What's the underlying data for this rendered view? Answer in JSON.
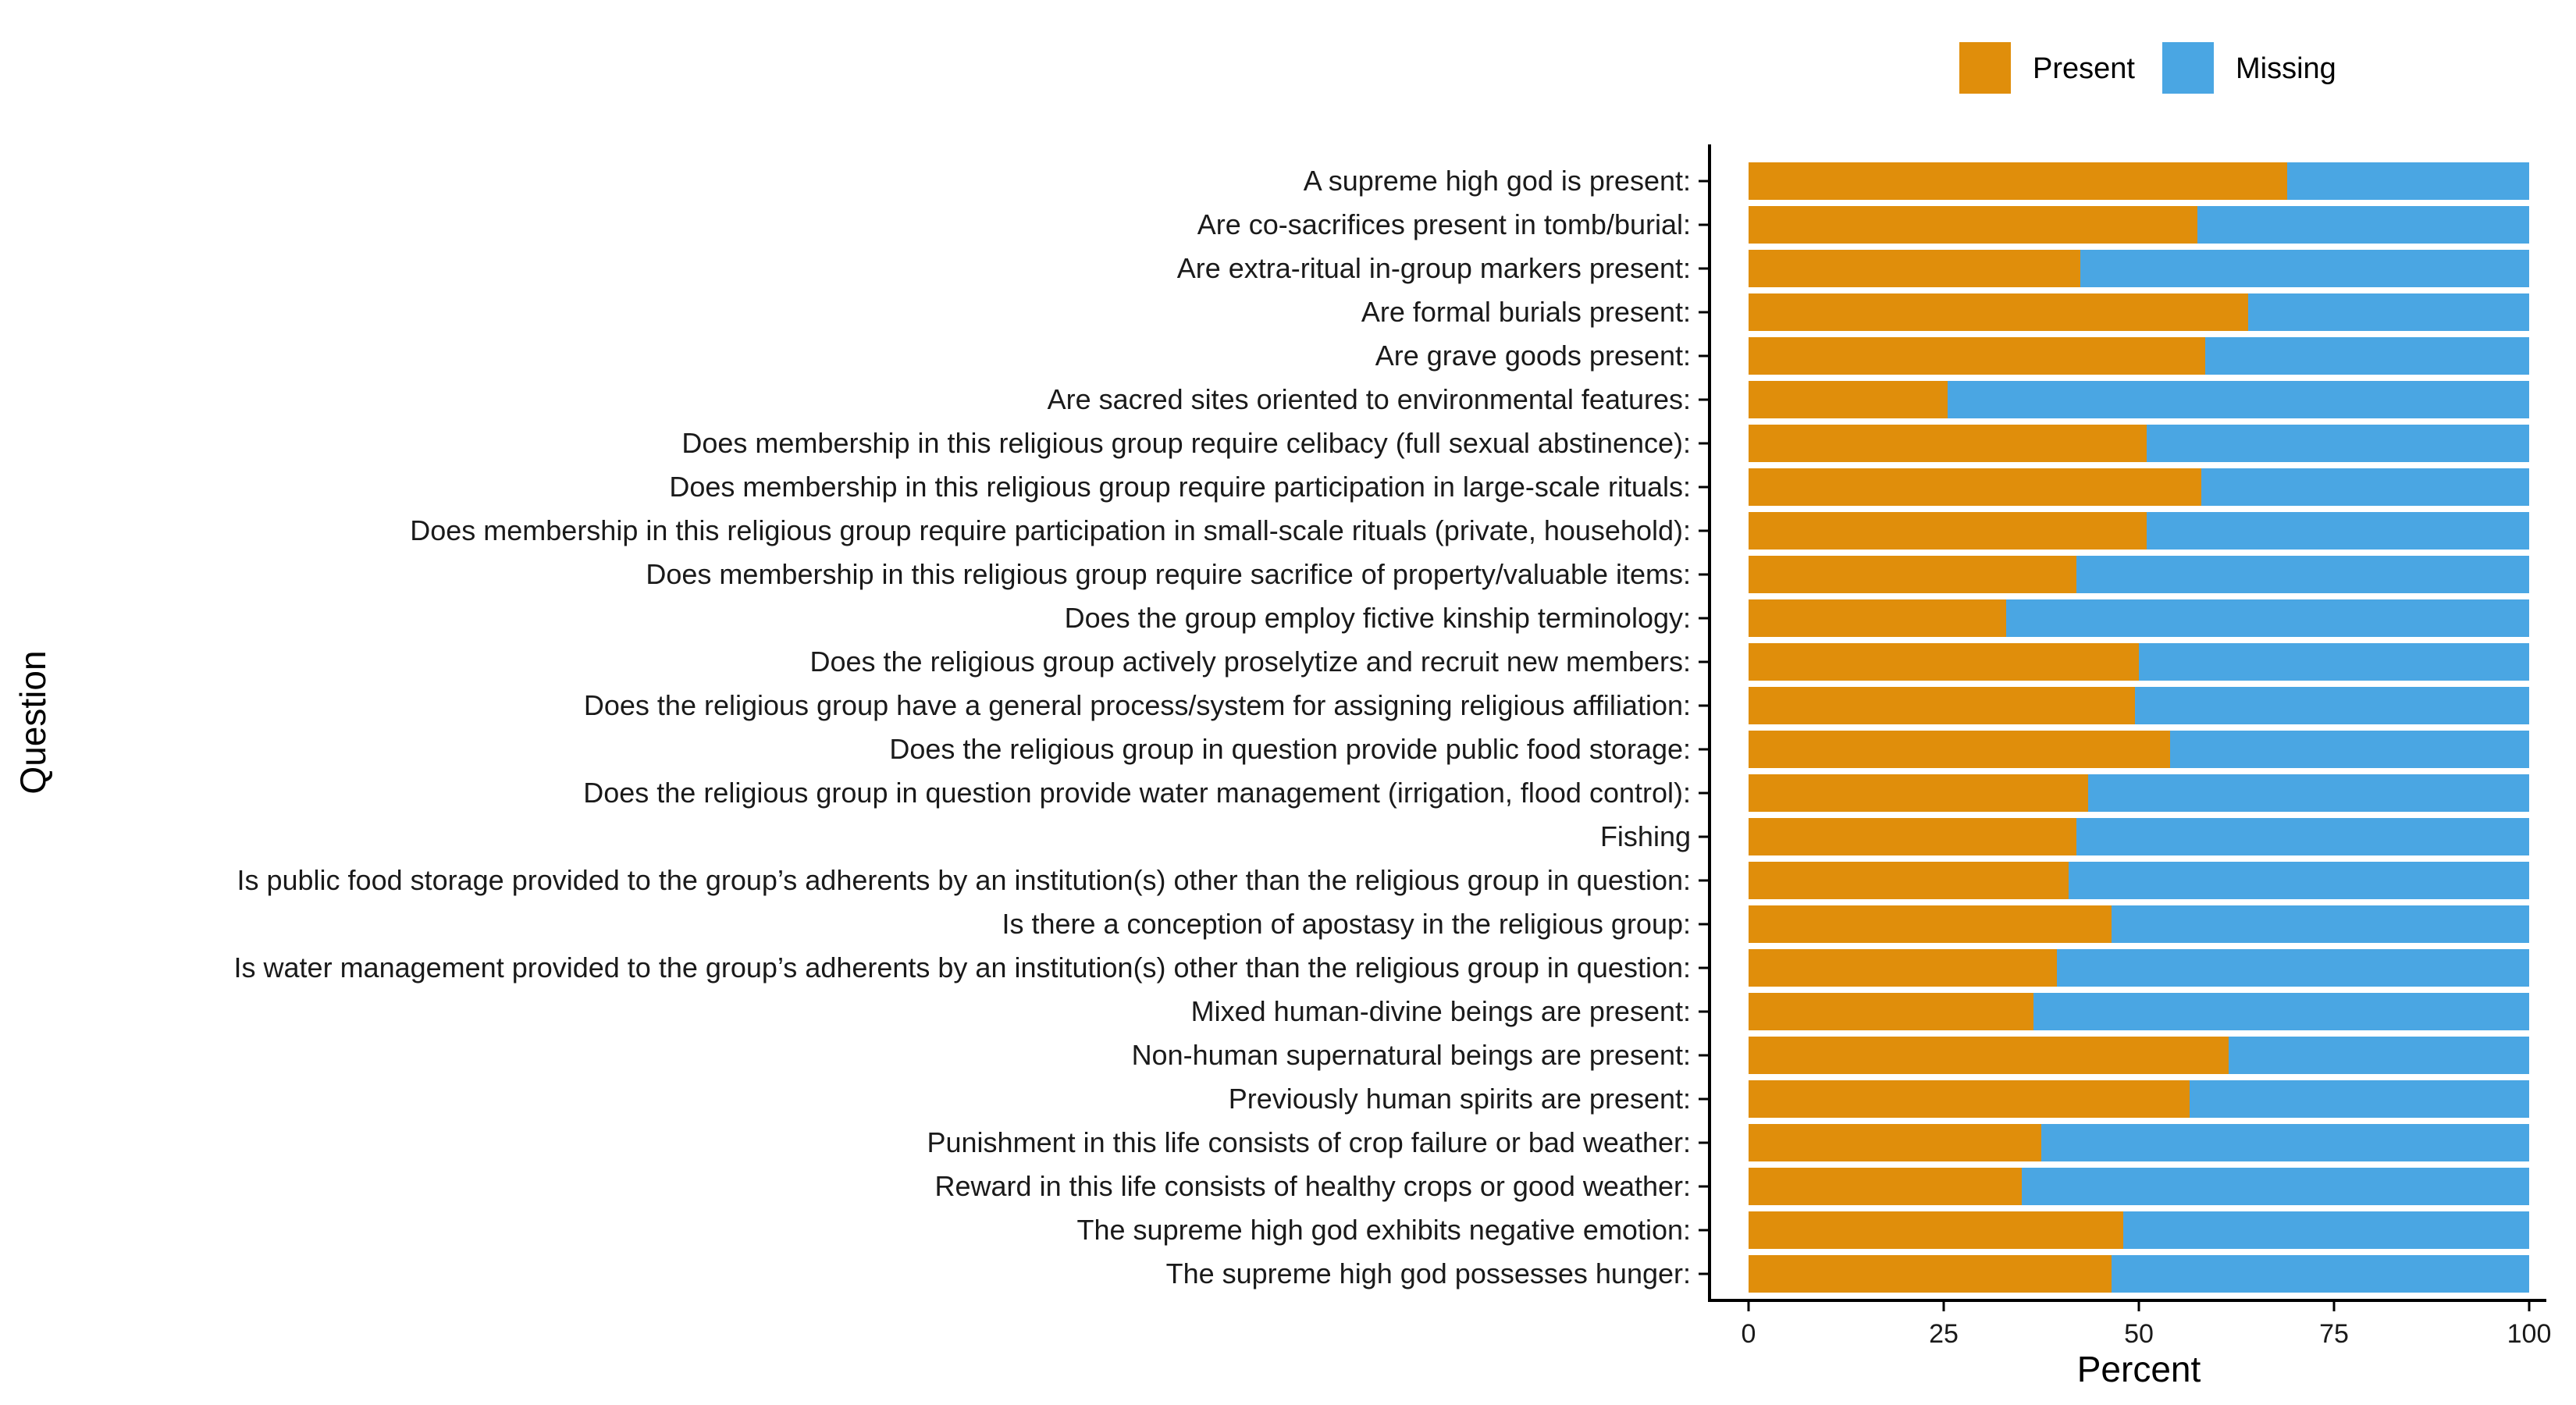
{
  "chart_data": {
    "type": "bar",
    "orientation": "horizontal",
    "stacked": true,
    "xlabel": "Percent",
    "ylabel": "Question",
    "xlim": [
      0,
      100
    ],
    "xticks": [
      0,
      25,
      50,
      75,
      100
    ],
    "legend_position": "top-right",
    "grid": false,
    "categories": [
      "A supreme high god is present:",
      "Are co-sacrifices present in tomb/burial:",
      "Are extra-ritual in-group markers present:",
      "Are formal burials present:",
      "Are grave goods present:",
      "Are sacred sites oriented to environmental features:",
      "Does membership in this religious group require celibacy (full sexual abstinence):",
      "Does membership in this religious group require participation in large-scale rituals:",
      "Does membership in this religious group require participation in small-scale rituals (private, household):",
      "Does membership in this religious group require sacrifice of property/valuable items:",
      "Does the group employ fictive kinship terminology:",
      "Does the religious group actively proselytize and recruit new members:",
      "Does the religious group have a general process/system for assigning religious affiliation:",
      "Does the religious group in question provide public food storage:",
      "Does the religious group in question provide water management (irrigation, flood control):",
      "Fishing",
      "Is public food storage provided to the group’s adherents by an institution(s) other than the religious group in question:",
      "Is there a conception of apostasy in the religious group:",
      "Is water management provided to the group’s adherents by an institution(s) other than the religious group in question:",
      "Mixed human-divine beings are present:",
      "Non-human supernatural beings are present:",
      "Previously human spirits are present:",
      "Punishment in this life consists of crop failure or bad weather:",
      "Reward in this life consists of healthy crops or good weather:",
      "The supreme high god exhibits negative emotion:",
      "The supreme high god possesses hunger:"
    ],
    "series": [
      {
        "name": "Present",
        "color": "#E08E0B",
        "values": [
          69,
          57.5,
          42.5,
          64,
          58.5,
          25.5,
          51,
          58,
          51,
          42,
          33,
          50,
          49.5,
          54,
          43.5,
          42,
          41,
          46.5,
          39.5,
          36.5,
          61.5,
          56.5,
          37.5,
          35,
          48,
          46.5
        ]
      },
      {
        "name": "Missing",
        "color": "#4AA6E3",
        "values": [
          31,
          42.5,
          57.5,
          36,
          41.5,
          74.5,
          49,
          42,
          49,
          58,
          67,
          50,
          50.5,
          46,
          56.5,
          58,
          59,
          53.5,
          60.5,
          63.5,
          38.5,
          43.5,
          62.5,
          65,
          52,
          53.5
        ]
      }
    ]
  }
}
